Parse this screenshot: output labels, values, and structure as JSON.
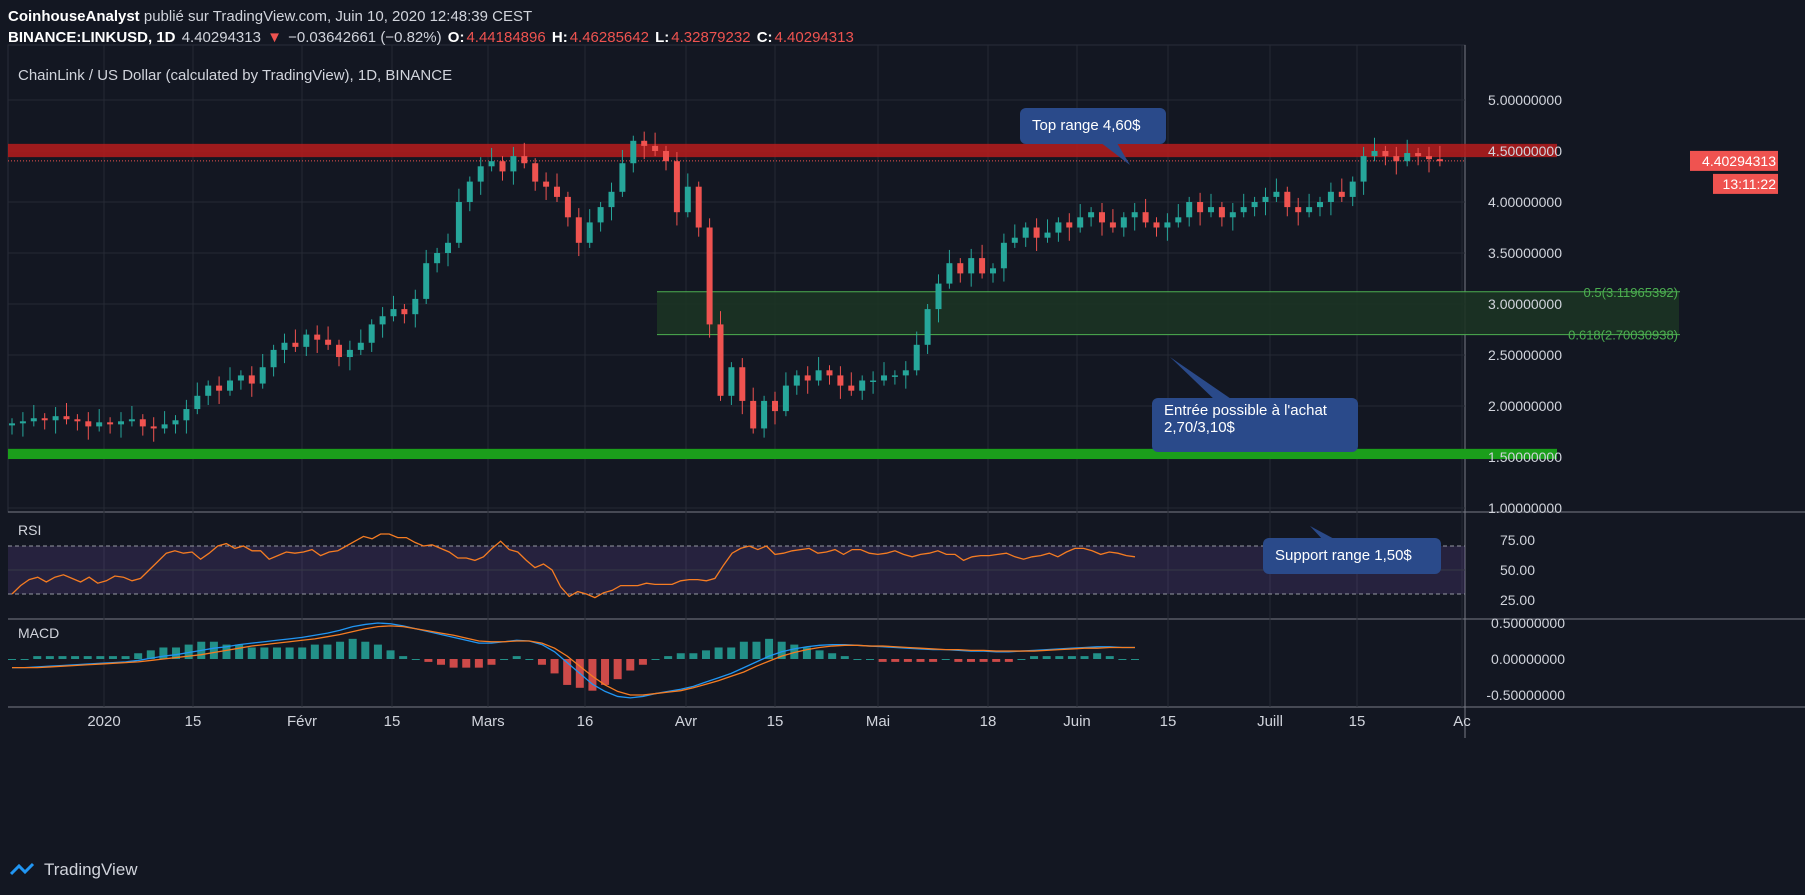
{
  "header": {
    "author": "CoinhouseAnalyst",
    "published_text": "publié sur TradingView.com, Juin 10, 2020 12:48:39 CEST",
    "symbol": "BINANCE:LINKUSD, 1D",
    "last": "4.40294313",
    "change": "−0.03642661 (−0.82%)",
    "o_label": "O:",
    "o_value": "4.44184896",
    "h_label": "H:",
    "h_value": "4.46285642",
    "l_label": "L:",
    "l_value": "4.32879232",
    "c_label": "C:",
    "c_value": "4.40294313"
  },
  "footer": {
    "brand": "TradingView"
  },
  "colors": {
    "background": "#131722",
    "up": "#26a69a",
    "down": "#ef5350",
    "resistance": "#b71c1c",
    "support": "#1b9e1b",
    "annotation": "#2a4a8a",
    "rsi": "#f57c22",
    "rsi_band": "#7e57c2",
    "macd": "#2196f3",
    "signal": "#f57c22"
  },
  "chart_data": [
    {
      "type": "candlestick",
      "title": "ChainLink / US Dollar (calculated by TradingView), 1D, BINANCE",
      "ylim": [
        1.0,
        5.0
      ],
      "y_ticks": [
        "5.00000000",
        "4.50000000",
        "4.00000000",
        "3.50000000",
        "3.00000000",
        "2.50000000",
        "2.00000000",
        "1.50000000",
        "1.00000000"
      ],
      "x_ticks": [
        "2020",
        "15",
        "Févr",
        "15",
        "Mars",
        "16",
        "Avr",
        "15",
        "Mai",
        "18",
        "Juin",
        "15",
        "Juill",
        "15",
        "Ac"
      ],
      "price_label": "4.40294313",
      "countdown_label": "13:11:22",
      "close_series": [
        1.83,
        1.85,
        1.88,
        1.86,
        1.9,
        1.87,
        1.85,
        1.8,
        1.84,
        1.82,
        1.85,
        1.87,
        1.8,
        1.78,
        1.82,
        1.86,
        1.97,
        2.1,
        2.2,
        2.15,
        2.25,
        2.3,
        2.22,
        2.38,
        2.55,
        2.62,
        2.58,
        2.7,
        2.65,
        2.6,
        2.48,
        2.55,
        2.62,
        2.8,
        2.88,
        2.95,
        2.9,
        3.05,
        3.4,
        3.5,
        3.6,
        4.0,
        4.2,
        4.35,
        4.4,
        4.3,
        4.45,
        4.38,
        4.2,
        4.15,
        4.05,
        3.85,
        3.6,
        3.8,
        3.95,
        4.1,
        4.38,
        4.6,
        4.55,
        4.5,
        4.4,
        3.9,
        4.15,
        3.75,
        2.8,
        2.1,
        2.38,
        2.05,
        1.78,
        2.05,
        1.95,
        2.2,
        2.3,
        2.25,
        2.35,
        2.3,
        2.2,
        2.15,
        2.25,
        2.25,
        2.3,
        2.3,
        2.35,
        2.6,
        2.95,
        3.2,
        3.4,
        3.3,
        3.45,
        3.3,
        3.35,
        3.6,
        3.65,
        3.75,
        3.65,
        3.7,
        3.8,
        3.75,
        3.85,
        3.9,
        3.8,
        3.75,
        3.85,
        3.9,
        3.8,
        3.75,
        3.8,
        3.85,
        4.0,
        3.9,
        3.95,
        3.85,
        3.9,
        3.95,
        4.0,
        4.05,
        4.1,
        3.95,
        3.9,
        3.95,
        4.0,
        4.1,
        4.05,
        4.2,
        4.45,
        4.5,
        4.45,
        4.4,
        4.48,
        4.45,
        4.42,
        4.4
      ],
      "levels": {
        "resistance_band": [
          4.44,
          4.57
        ],
        "support_band": [
          1.48,
          1.58
        ],
        "fib_zone": [
          2.70030938,
          3.11965392
        ]
      },
      "fib_labels": [
        "0.5(3.11965392)",
        "0.618(2.70030938)"
      ],
      "annotations": [
        "Top range 4,60$",
        "Entrée possible à l'achat\n2,70/3,10$",
        "Support range 1,50$"
      ]
    },
    {
      "type": "line",
      "name": "RSI",
      "title": "RSI",
      "ylim": [
        20,
        85
      ],
      "y_ticks": [
        "75.00",
        "50.00",
        "25.00"
      ],
      "band": [
        30,
        70
      ],
      "series": [
        {
          "values": [
            30,
            37,
            42,
            44,
            40,
            44,
            46,
            43,
            40,
            44,
            39,
            41,
            45,
            44,
            41,
            43,
            50,
            57,
            64,
            66,
            64,
            65,
            59,
            64,
            70,
            72,
            68,
            70,
            66,
            66,
            59,
            62,
            65,
            64,
            65,
            67,
            62,
            65,
            66,
            70,
            74,
            78,
            76,
            80,
            80,
            77,
            77,
            73,
            70,
            71,
            68,
            65,
            60,
            60,
            58,
            61,
            68,
            74,
            67,
            65,
            58,
            52,
            55,
            50,
            36,
            28,
            32,
            30,
            27,
            31,
            33,
            37,
            37,
            37,
            39,
            38,
            38,
            38,
            41,
            42,
            42,
            41,
            43,
            54,
            64,
            68,
            70,
            67,
            70,
            63,
            64,
            66,
            67,
            68,
            64,
            65,
            67,
            63,
            67,
            67,
            64,
            63,
            64,
            66,
            63,
            61,
            63,
            64,
            66,
            63,
            63,
            58,
            61,
            62,
            62,
            63,
            64,
            61,
            59,
            61,
            62,
            64,
            61,
            65,
            68,
            68,
            66,
            63,
            65,
            64,
            62,
            61
          ]
        }
      ]
    },
    {
      "type": "line",
      "name": "MACD",
      "title": "MACD",
      "ylim": [
        -0.6,
        0.6
      ],
      "y_ticks": [
        "0.50000000",
        "0.00000000",
        "-0.50000000"
      ],
      "series": [
        {
          "values": [
            -0.12,
            -0.12,
            -0.11,
            -0.1,
            -0.09,
            -0.08,
            -0.07,
            -0.06,
            -0.05,
            -0.04,
            -0.02,
            0.01,
            0.04,
            0.06,
            0.09,
            0.12,
            0.15,
            0.17,
            0.2,
            0.22,
            0.24,
            0.26,
            0.28,
            0.3,
            0.33,
            0.36,
            0.4,
            0.45,
            0.48,
            0.5,
            0.49,
            0.46,
            0.42,
            0.38,
            0.34,
            0.3,
            0.26,
            0.22,
            0.22,
            0.24,
            0.26,
            0.25,
            0.2,
            0.1,
            -0.05,
            -0.2,
            -0.35,
            -0.45,
            -0.52,
            -0.54,
            -0.52,
            -0.48,
            -0.45,
            -0.42,
            -0.38,
            -0.32,
            -0.26,
            -0.2,
            -0.12,
            -0.04,
            0.04,
            0.1,
            0.14,
            0.17,
            0.19,
            0.2,
            0.2,
            0.19,
            0.18,
            0.17,
            0.16,
            0.15,
            0.14,
            0.13,
            0.13,
            0.12,
            0.11,
            0.11,
            0.1,
            0.1,
            0.11,
            0.12,
            0.13,
            0.14,
            0.15,
            0.16,
            0.17,
            0.17,
            0.16,
            0.16
          ]
        },
        {
          "values": [
            -0.12,
            -0.12,
            -0.12,
            -0.11,
            -0.1,
            -0.09,
            -0.08,
            -0.07,
            -0.06,
            -0.05,
            -0.04,
            -0.02,
            0.0,
            0.02,
            0.04,
            0.06,
            0.09,
            0.12,
            0.15,
            0.18,
            0.2,
            0.22,
            0.24,
            0.26,
            0.28,
            0.31,
            0.34,
            0.38,
            0.42,
            0.45,
            0.46,
            0.45,
            0.42,
            0.39,
            0.36,
            0.33,
            0.29,
            0.25,
            0.24,
            0.24,
            0.25,
            0.25,
            0.22,
            0.15,
            0.04,
            -0.1,
            -0.24,
            -0.36,
            -0.45,
            -0.5,
            -0.5,
            -0.48,
            -0.46,
            -0.44,
            -0.4,
            -0.35,
            -0.3,
            -0.24,
            -0.18,
            -0.1,
            -0.03,
            0.04,
            0.09,
            0.13,
            0.16,
            0.18,
            0.19,
            0.19,
            0.18,
            0.18,
            0.17,
            0.16,
            0.15,
            0.14,
            0.13,
            0.13,
            0.12,
            0.12,
            0.11,
            0.11,
            0.11,
            0.11,
            0.12,
            0.13,
            0.14,
            0.15,
            0.15,
            0.16,
            0.16,
            0.16
          ]
        }
      ]
    }
  ]
}
